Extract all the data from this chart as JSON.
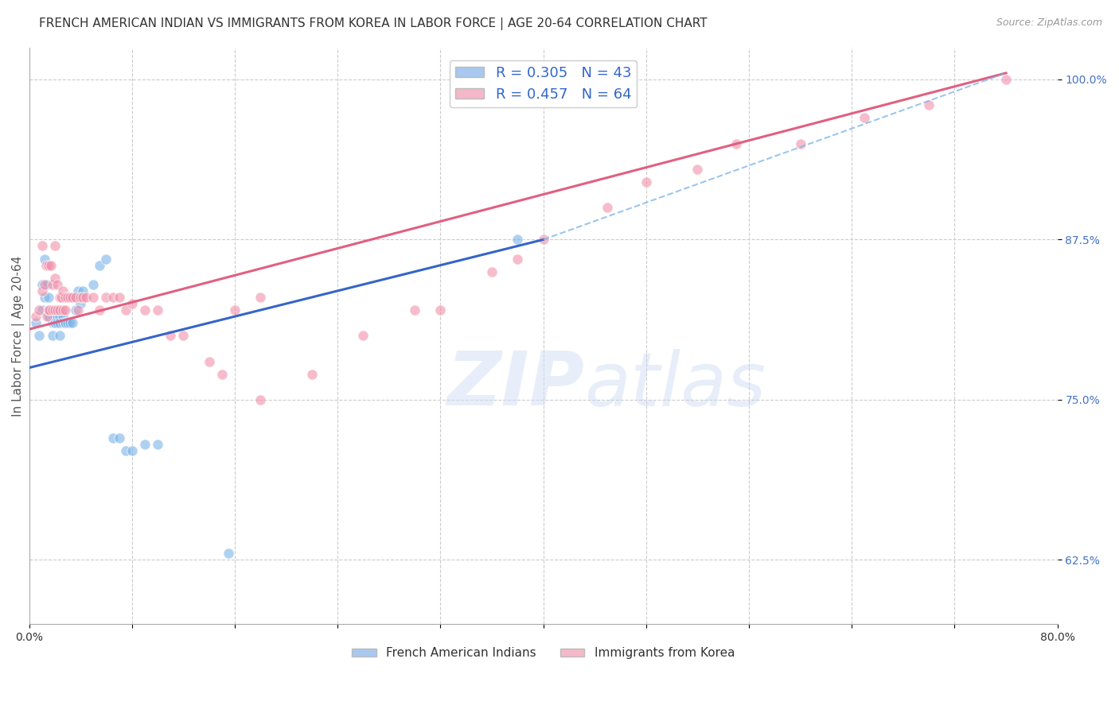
{
  "title": "FRENCH AMERICAN INDIAN VS IMMIGRANTS FROM KOREA IN LABOR FORCE | AGE 20-64 CORRELATION CHART",
  "source": "Source: ZipAtlas.com",
  "ylabel": "In Labor Force | Age 20-64",
  "xlim": [
    0.0,
    0.8
  ],
  "ylim": [
    0.575,
    1.025
  ],
  "xticks": [
    0.0,
    0.08,
    0.16,
    0.24,
    0.32,
    0.4,
    0.48,
    0.56,
    0.64,
    0.72,
    0.8
  ],
  "xtick_labels": [
    "0.0%",
    "",
    "",
    "",
    "",
    "",
    "",
    "",
    "",
    "",
    "80.0%"
  ],
  "ytick_labels": [
    "62.5%",
    "75.0%",
    "87.5%",
    "100.0%"
  ],
  "yticks": [
    0.625,
    0.75,
    0.875,
    1.0
  ],
  "legend_entries": [
    {
      "label": "R = 0.305   N = 43",
      "color": "#a8c8f0"
    },
    {
      "label": "R = 0.457   N = 64",
      "color": "#f5b8c8"
    }
  ],
  "bottom_legend": [
    {
      "label": "French American Indians",
      "color": "#a8c8f0"
    },
    {
      "label": "Immigrants from Korea",
      "color": "#f5b8c8"
    }
  ],
  "watermark_zip": "ZIP",
  "watermark_atlas": "atlas",
  "blue_scatter_x": [
    0.005,
    0.008,
    0.01,
    0.01,
    0.012,
    0.012,
    0.014,
    0.015,
    0.015,
    0.016,
    0.018,
    0.018,
    0.018,
    0.02,
    0.02,
    0.02,
    0.022,
    0.022,
    0.024,
    0.024,
    0.024,
    0.026,
    0.026,
    0.028,
    0.028,
    0.03,
    0.032,
    0.034,
    0.036,
    0.038,
    0.04,
    0.042,
    0.05,
    0.055,
    0.06,
    0.065,
    0.07,
    0.075,
    0.08,
    0.09,
    0.1,
    0.155,
    0.38
  ],
  "blue_scatter_y": [
    0.81,
    0.8,
    0.82,
    0.84,
    0.83,
    0.86,
    0.84,
    0.83,
    0.815,
    0.815,
    0.815,
    0.81,
    0.8,
    0.81,
    0.81,
    0.815,
    0.815,
    0.81,
    0.815,
    0.81,
    0.8,
    0.815,
    0.81,
    0.81,
    0.81,
    0.81,
    0.81,
    0.81,
    0.82,
    0.835,
    0.825,
    0.835,
    0.84,
    0.855,
    0.86,
    0.72,
    0.72,
    0.71,
    0.71,
    0.715,
    0.715,
    0.63,
    0.875
  ],
  "pink_scatter_x": [
    0.005,
    0.008,
    0.01,
    0.01,
    0.012,
    0.013,
    0.014,
    0.015,
    0.015,
    0.016,
    0.017,
    0.018,
    0.018,
    0.02,
    0.02,
    0.02,
    0.022,
    0.022,
    0.024,
    0.024,
    0.025,
    0.026,
    0.026,
    0.028,
    0.028,
    0.03,
    0.032,
    0.034,
    0.036,
    0.038,
    0.04,
    0.042,
    0.044,
    0.05,
    0.055,
    0.06,
    0.065,
    0.07,
    0.075,
    0.08,
    0.09,
    0.1,
    0.11,
    0.12,
    0.14,
    0.15,
    0.16,
    0.18,
    0.18,
    0.22,
    0.26,
    0.3,
    0.32,
    0.36,
    0.38,
    0.4,
    0.45,
    0.48,
    0.52,
    0.55,
    0.6,
    0.65,
    0.7,
    0.76
  ],
  "pink_scatter_y": [
    0.815,
    0.82,
    0.87,
    0.835,
    0.84,
    0.855,
    0.815,
    0.855,
    0.82,
    0.82,
    0.855,
    0.84,
    0.82,
    0.87,
    0.845,
    0.82,
    0.84,
    0.82,
    0.83,
    0.82,
    0.83,
    0.835,
    0.82,
    0.83,
    0.82,
    0.83,
    0.83,
    0.83,
    0.83,
    0.82,
    0.83,
    0.83,
    0.83,
    0.83,
    0.82,
    0.83,
    0.83,
    0.83,
    0.82,
    0.825,
    0.82,
    0.82,
    0.8,
    0.8,
    0.78,
    0.77,
    0.82,
    0.83,
    0.75,
    0.77,
    0.8,
    0.82,
    0.82,
    0.85,
    0.86,
    0.875,
    0.9,
    0.92,
    0.93,
    0.95,
    0.95,
    0.97,
    0.98,
    1.0
  ],
  "blue_line_x": [
    0.0,
    0.4
  ],
  "blue_line_y": [
    0.775,
    0.875
  ],
  "pink_line_x": [
    0.0,
    0.76
  ],
  "pink_line_y": [
    0.805,
    1.005
  ],
  "dashed_line_x": [
    0.4,
    0.76
  ],
  "dashed_line_y": [
    0.875,
    1.005
  ],
  "title_fontsize": 11,
  "axis_label_fontsize": 11,
  "tick_fontsize": 10,
  "legend_fontsize": 13,
  "scatter_size": 90,
  "scatter_alpha": 0.6,
  "blue_scatter_color": "#7ab3e8",
  "pink_scatter_color": "#f090aa",
  "blue_line_color": "#3565c8",
  "pink_line_color": "#e06080",
  "dashed_line_color": "#7ab3e8",
  "grid_color": "#cccccc",
  "ytick_color": "#4472c4",
  "background_color": "#ffffff"
}
